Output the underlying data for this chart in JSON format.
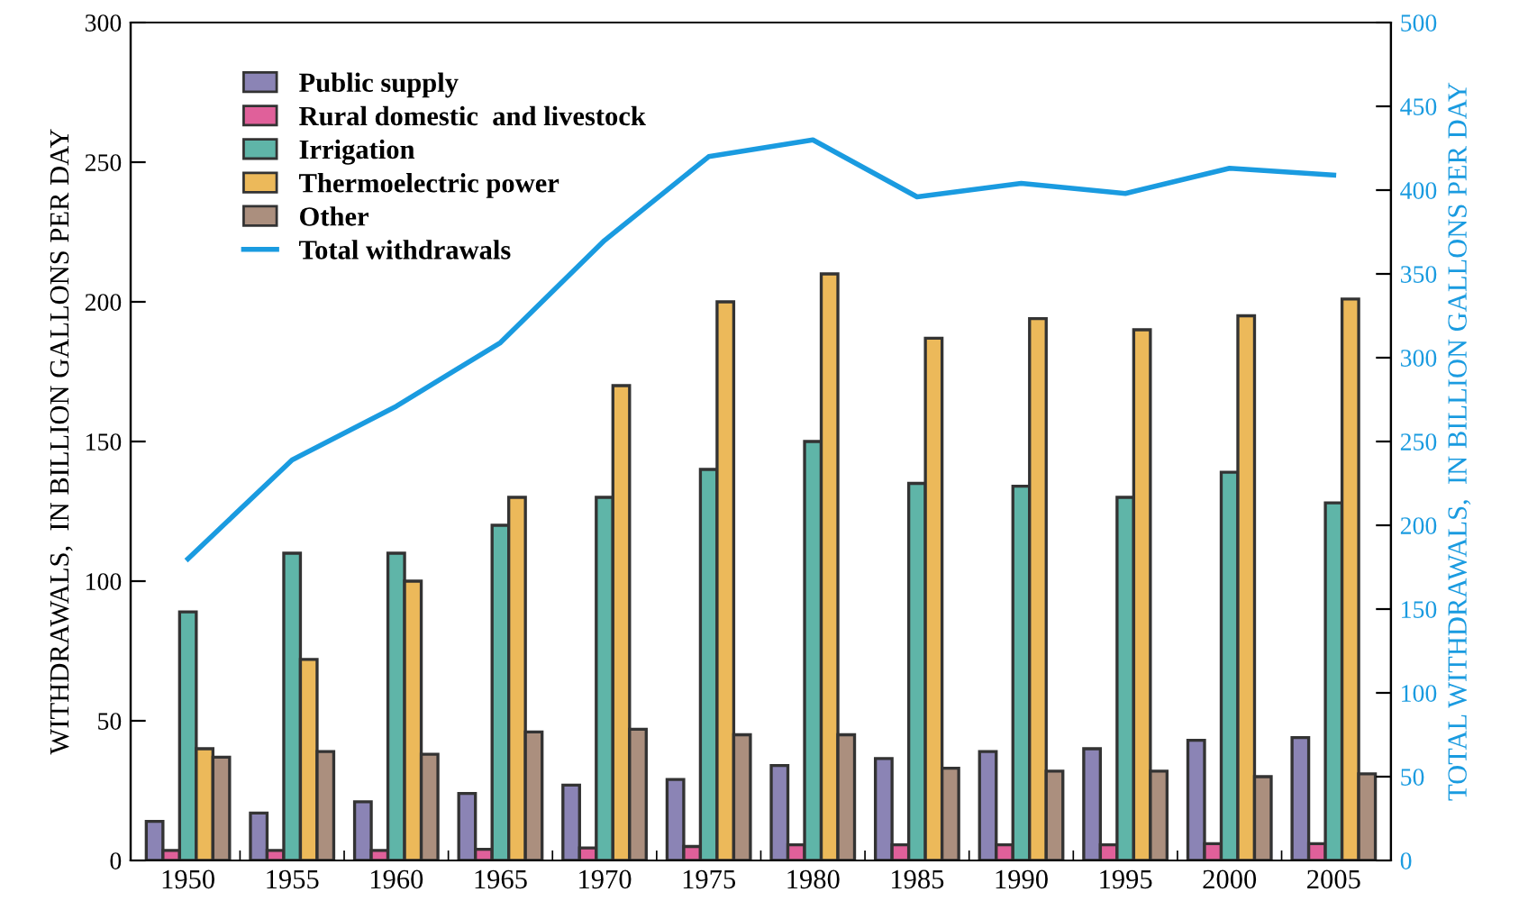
{
  "chart_data": {
    "type": "bar",
    "xlabel": null,
    "ylabel": "WITHDRAWALS,  IN BILLION GALLONS PER DAY",
    "y2label": "TOTAL WITHDRAWALS,  IN BILLION GALLONS PER DAY",
    "categories": [
      "1950",
      "1955",
      "1960",
      "1965",
      "1970",
      "1975",
      "1980",
      "1985",
      "1990",
      "1995",
      "2000",
      "2005"
    ],
    "series": [
      {
        "name": "Public supply",
        "color": "#8b84b5",
        "values": [
          14,
          17,
          21,
          24,
          27,
          29,
          34,
          36.5,
          39,
          40,
          43,
          44
        ]
      },
      {
        "name": "Rural domestic  and livestock",
        "color": "#e0609a",
        "values": [
          3.6,
          3.6,
          3.6,
          4,
          4.5,
          5,
          5.6,
          5.6,
          5.6,
          5.6,
          6,
          6
        ]
      },
      {
        "name": "Irrigation",
        "color": "#5fb5a8",
        "values": [
          89,
          110,
          110,
          120,
          130,
          140,
          150,
          135,
          134,
          130,
          139,
          128
        ]
      },
      {
        "name": "Thermoelectric power",
        "color": "#ecb95a",
        "values": [
          40,
          72,
          100,
          130,
          170,
          200,
          210,
          187,
          194,
          190,
          195,
          201
        ]
      },
      {
        "name": "Other",
        "color": "#ab8f7e",
        "values": [
          37,
          39,
          38,
          46,
          47,
          45,
          45,
          33,
          32,
          32,
          30,
          31
        ]
      },
      {
        "name": "Total withdrawals",
        "type": "line",
        "axis": "y2",
        "color": "#1a9be0",
        "values": [
          180,
          239,
          271,
          309,
          370,
          420,
          430,
          396,
          404,
          398,
          413,
          409
        ]
      }
    ],
    "ylim": [
      0,
      300
    ],
    "yticks": [
      0,
      50,
      100,
      150,
      200,
      250,
      300
    ],
    "y2lim": [
      0,
      500
    ],
    "y2ticks": [
      0,
      50,
      100,
      150,
      200,
      250,
      300,
      350,
      400,
      450,
      500
    ],
    "legend": "top left",
    "grid": false,
    "marker": "none",
    "line_style": "solid"
  }
}
